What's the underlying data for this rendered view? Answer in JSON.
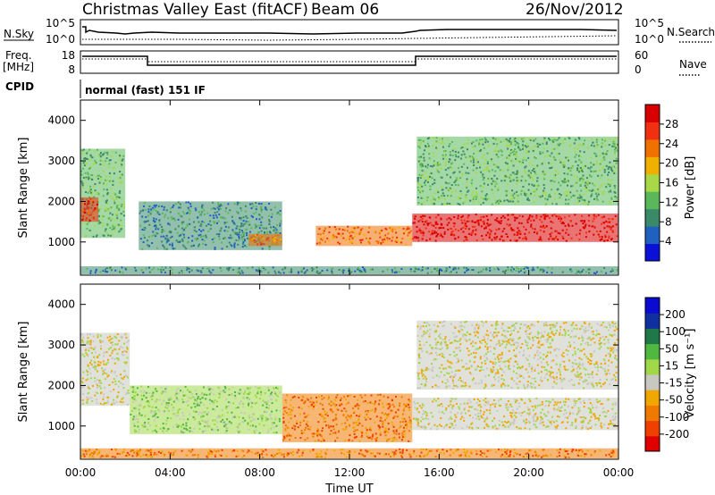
{
  "header": {
    "site": "Christmas Valley East (fitACF)",
    "beam": "Beam 06",
    "date": "26/Nov/2012"
  },
  "top_panels": {
    "nsky_label": "N.Sky",
    "nsky_ticks": [
      "10^5",
      "10^0"
    ],
    "nsearch_label": "N.Search",
    "nsearch_ticks": [
      "10^5",
      "10^0"
    ],
    "freq_label_line1": "Freq.",
    "freq_label_line2": "[MHz]",
    "freq_ticks": [
      "18",
      "8"
    ],
    "nave_label": "Nave",
    "nave_ticks": [
      "60",
      "0"
    ],
    "cpid_label": "CPID",
    "cpid_value": "normal (fast) 151 IF"
  },
  "colors": {
    "power_scale": [
      "#0a10d8",
      "#2060c0",
      "#3a8a6a",
      "#5ab85a",
      "#a8d848",
      "#f0b000",
      "#f07000",
      "#f03010",
      "#d80000"
    ],
    "velocity_scale": [
      "#e00000",
      "#f04000",
      "#f07a00",
      "#f0a800",
      "#c8c8c0",
      "#a0d848",
      "#50b840",
      "#207848",
      "#1030a0",
      "#0a0ad0"
    ]
  },
  "chart_data": [
    {
      "type": "heatmap",
      "ylabel": "Slant Range [km]",
      "yticks": [
        "1000",
        "2000",
        "3000",
        "4000"
      ],
      "ylim": [
        180,
        4500
      ],
      "xlim": [
        0,
        24
      ],
      "colorbar_label": "Power [dB]",
      "colorbar_ticks": [
        "4",
        "8",
        "12",
        "16",
        "20",
        "24",
        "28"
      ],
      "regions": [
        {
          "t0": 0.0,
          "t1": 2.0,
          "r0": 1100,
          "r1": 3300,
          "level": 3
        },
        {
          "t0": 0.0,
          "t1": 0.8,
          "r0": 1500,
          "r1": 2100,
          "level": 7
        },
        {
          "t0": 2.6,
          "t1": 9.0,
          "r0": 800,
          "r1": 2000,
          "level": 2
        },
        {
          "t0": 7.5,
          "t1": 9.0,
          "r0": 900,
          "r1": 1200,
          "level": 6
        },
        {
          "t0": 10.5,
          "t1": 14.8,
          "r0": 900,
          "r1": 1400,
          "level": 6
        },
        {
          "t0": 14.8,
          "t1": 24.0,
          "r0": 1000,
          "r1": 1700,
          "level": 8
        },
        {
          "t0": 15.0,
          "t1": 24.0,
          "r0": 1900,
          "r1": 3600,
          "level": 3
        },
        {
          "t0": 0.0,
          "t1": 24.0,
          "r0": 200,
          "r1": 400,
          "level": 2
        }
      ],
      "xlabel": ""
    },
    {
      "type": "heatmap",
      "ylabel": "Slant Range [km]",
      "yticks": [
        "1000",
        "2000",
        "3000",
        "4000"
      ],
      "ylim": [
        180,
        4500
      ],
      "xlim": [
        0,
        24
      ],
      "xticks": [
        "00:00",
        "04:00",
        "08:00",
        "12:00",
        "16:00",
        "20:00",
        "00:00"
      ],
      "xlabel": "Time UT",
      "colorbar_label": "Velocity [m s⁻¹]",
      "colorbar_ticks": [
        "200",
        "100",
        "50",
        "15",
        "-15",
        "-50",
        "-100",
        "-200"
      ],
      "regions": [
        {
          "t0": 0.0,
          "t1": 2.2,
          "r0": 1500,
          "r1": 3300,
          "level": 4
        },
        {
          "t0": 2.2,
          "t1": 9.0,
          "r0": 800,
          "r1": 2000,
          "level": 5
        },
        {
          "t0": 9.0,
          "t1": 14.8,
          "r0": 600,
          "r1": 1800,
          "level": 2
        },
        {
          "t0": 14.8,
          "t1": 24.0,
          "r0": 900,
          "r1": 1700,
          "level": 4
        },
        {
          "t0": 15.0,
          "t1": 24.0,
          "r0": 1900,
          "r1": 3600,
          "level": 4
        },
        {
          "t0": 0.0,
          "t1": 24.0,
          "r0": 200,
          "r1": 450,
          "level": 2
        }
      ]
    }
  ]
}
